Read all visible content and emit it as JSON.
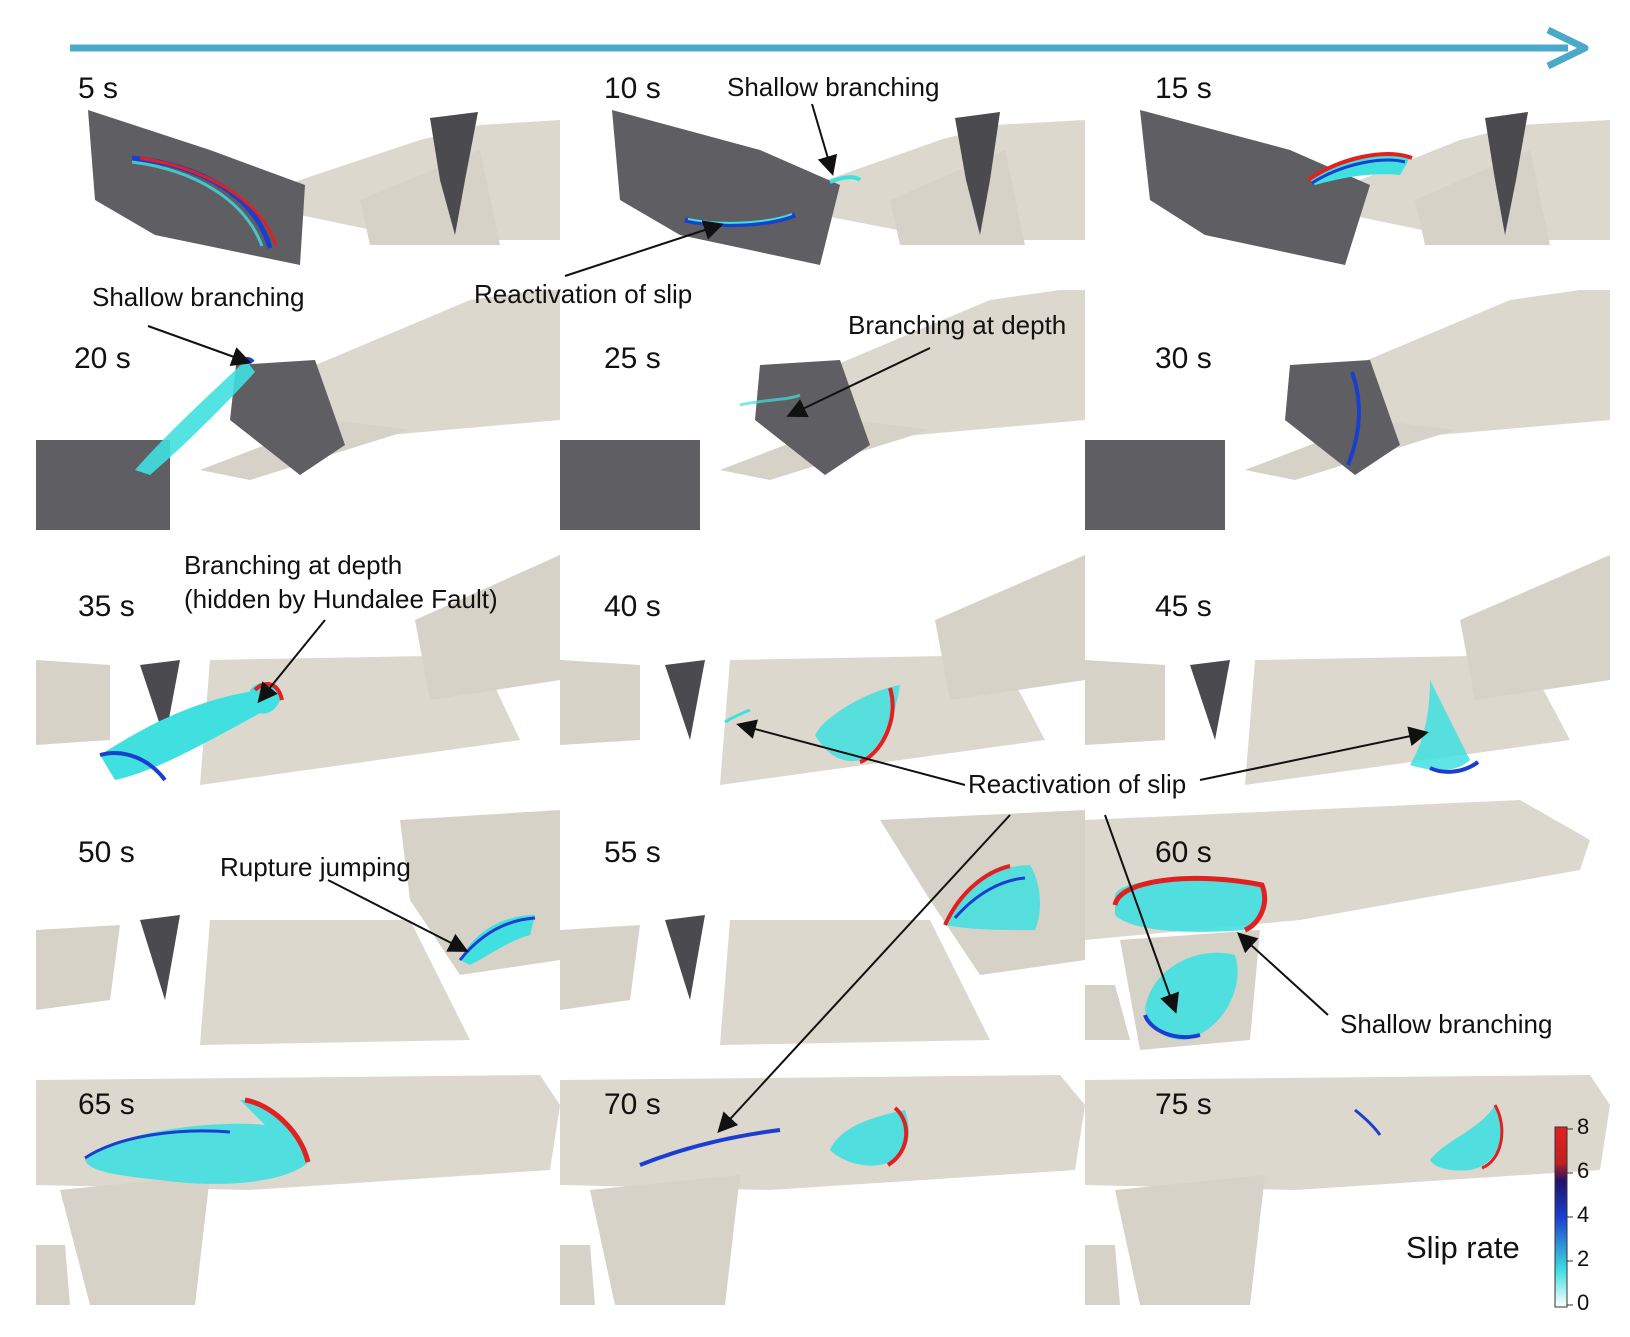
{
  "frames": [
    {
      "time": "5 s"
    },
    {
      "time": "10 s"
    },
    {
      "time": "15 s"
    },
    {
      "time": "20 s"
    },
    {
      "time": "25 s"
    },
    {
      "time": "30 s"
    },
    {
      "time": "35 s"
    },
    {
      "time": "40 s"
    },
    {
      "time": "45 s"
    },
    {
      "time": "50 s"
    },
    {
      "time": "55 s"
    },
    {
      "time": "60 s"
    },
    {
      "time": "65 s"
    },
    {
      "time": "70 s"
    },
    {
      "time": "75 s"
    }
  ],
  "annotations": {
    "shallow_branching_10s": "Shallow branching",
    "reactivation_10s": "Reactivation of slip",
    "shallow_branching_20s": "Shallow branching",
    "branching_depth_25s": "Branching at depth",
    "branching_depth_35s_line1": "Branching at depth",
    "branching_depth_35s_line2": "(hidden by Hundalee Fault)",
    "reactivation_center": "Reactivation of slip",
    "rupture_jumping": "Rupture jumping",
    "shallow_branching_60s": "Shallow branching"
  },
  "colorbar": {
    "label": "Slip rate",
    "ticks": [
      "8",
      "6",
      "4",
      "2",
      "0"
    ],
    "colors": [
      "#ffffff",
      "#40e0e0",
      "#1a3fcf",
      "#20126b",
      "#c02020",
      "#e32020"
    ]
  },
  "colors": {
    "arrow": "#4aa8c8",
    "fault_dark": "#5e5e63",
    "fault_light": "#dad6cc",
    "background": "#ffffff"
  }
}
